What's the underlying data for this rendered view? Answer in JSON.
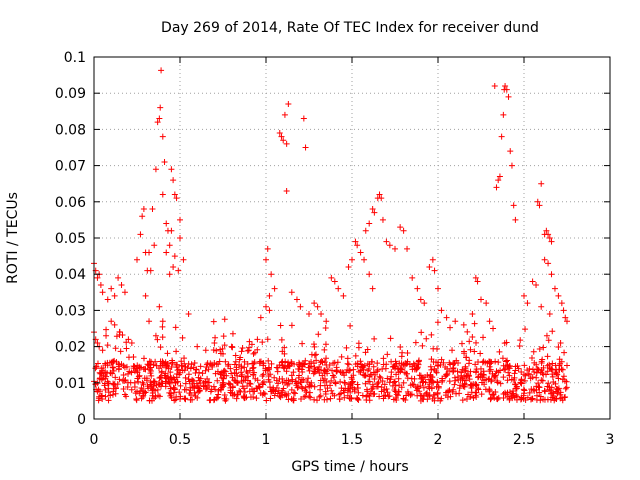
{
  "chart_data": {
    "type": "scatter",
    "title": "Day 269 of 2014, Rate Of TEC Index for receiver dund",
    "xlabel": "GPS time / hours",
    "ylabel": "ROTI / TECUs",
    "xlim": [
      0,
      3
    ],
    "ylim": [
      0,
      0.1
    ],
    "x_ticks": [
      0,
      0.5,
      1,
      1.5,
      2,
      2.5,
      3
    ],
    "x_tick_labels": [
      "0",
      "0.5",
      "1",
      "1.5",
      "2",
      "2.5",
      "3"
    ],
    "y_ticks": [
      0,
      0.01,
      0.02,
      0.03,
      0.04,
      0.05,
      0.06,
      0.07,
      0.08,
      0.09,
      0.1
    ],
    "y_tick_labels": [
      "0",
      "0.01",
      "0.02",
      "0.03",
      "0.04",
      "0.05",
      "0.06",
      "0.07",
      "0.08",
      "0.09",
      "0.1"
    ],
    "grid": true,
    "marker": "+",
    "marker_color": "#ff0000",
    "grid_color": "#a0a0a0",
    "frame_color": "#000000",
    "series": [
      {
        "name": "ROTI",
        "points": [
          [
            0.0,
            0.043
          ],
          [
            0.01,
            0.041
          ],
          [
            0.02,
            0.039
          ],
          [
            0.03,
            0.04
          ],
          [
            0.04,
            0.037
          ],
          [
            0.05,
            0.035
          ],
          [
            0.0,
            0.024
          ],
          [
            0.01,
            0.022
          ],
          [
            0.02,
            0.021
          ],
          [
            0.03,
            0.02
          ],
          [
            0.05,
            0.019
          ],
          [
            0.07,
            0.023
          ],
          [
            0.08,
            0.033
          ],
          [
            0.1,
            0.036
          ],
          [
            0.12,
            0.034
          ],
          [
            0.14,
            0.039
          ],
          [
            0.16,
            0.037
          ],
          [
            0.18,
            0.035
          ],
          [
            0.1,
            0.027
          ],
          [
            0.12,
            0.026
          ],
          [
            0.15,
            0.024
          ],
          [
            0.2,
            0.022
          ],
          [
            0.22,
            0.021
          ],
          [
            0.25,
            0.044
          ],
          [
            0.27,
            0.051
          ],
          [
            0.28,
            0.056
          ],
          [
            0.29,
            0.058
          ],
          [
            0.3,
            0.046
          ],
          [
            0.31,
            0.041
          ],
          [
            0.32,
            0.046
          ],
          [
            0.33,
            0.041
          ],
          [
            0.34,
            0.058
          ],
          [
            0.35,
            0.048
          ],
          [
            0.3,
            0.034
          ],
          [
            0.32,
            0.027
          ],
          [
            0.36,
            0.069
          ],
          [
            0.37,
            0.082
          ],
          [
            0.38,
            0.083
          ],
          [
            0.385,
            0.086
          ],
          [
            0.39,
            0.0963
          ],
          [
            0.4,
            0.078
          ],
          [
            0.41,
            0.071
          ],
          [
            0.4,
            0.062
          ],
          [
            0.42,
            0.054
          ],
          [
            0.43,
            0.052
          ],
          [
            0.44,
            0.048
          ],
          [
            0.45,
            0.069
          ],
          [
            0.46,
            0.066
          ],
          [
            0.47,
            0.062
          ],
          [
            0.48,
            0.061
          ],
          [
            0.45,
            0.052
          ],
          [
            0.47,
            0.045
          ],
          [
            0.49,
            0.041
          ],
          [
            0.5,
            0.055
          ],
          [
            0.5,
            0.05
          ],
          [
            0.52,
            0.044
          ],
          [
            0.46,
            0.042
          ],
          [
            0.42,
            0.046
          ],
          [
            0.44,
            0.04
          ],
          [
            0.55,
            0.029
          ],
          [
            0.38,
            0.031
          ],
          [
            0.4,
            0.027
          ],
          [
            0.36,
            0.023
          ],
          [
            0.6,
            0.02
          ],
          [
            0.65,
            0.019
          ],
          [
            0.7,
            0.021
          ],
          [
            0.75,
            0.018
          ],
          [
            0.8,
            0.02
          ],
          [
            0.85,
            0.017
          ],
          [
            0.9,
            0.019
          ],
          [
            0.95,
            0.022
          ],
          [
            0.97,
            0.028
          ],
          [
            1.0,
            0.031
          ],
          [
            1.02,
            0.03
          ],
          [
            1.0,
            0.044
          ],
          [
            1.01,
            0.047
          ],
          [
            1.03,
            0.04
          ],
          [
            1.05,
            0.036
          ],
          [
            1.02,
            0.034
          ],
          [
            1.08,
            0.079
          ],
          [
            1.09,
            0.078
          ],
          [
            1.1,
            0.077
          ],
          [
            1.11,
            0.084
          ],
          [
            1.12,
            0.076
          ],
          [
            1.13,
            0.087
          ],
          [
            1.12,
            0.063
          ],
          [
            1.22,
            0.083
          ],
          [
            1.23,
            0.075
          ],
          [
            1.15,
            0.035
          ],
          [
            1.18,
            0.033
          ],
          [
            1.2,
            0.031
          ],
          [
            1.25,
            0.029
          ],
          [
            1.28,
            0.032
          ],
          [
            1.3,
            0.031
          ],
          [
            1.32,
            0.029
          ],
          [
            1.35,
            0.027
          ],
          [
            1.38,
            0.039
          ],
          [
            1.4,
            0.038
          ],
          [
            1.42,
            0.036
          ],
          [
            1.45,
            0.034
          ],
          [
            1.48,
            0.042
          ],
          [
            1.5,
            0.044
          ],
          [
            1.52,
            0.049
          ],
          [
            1.53,
            0.048
          ],
          [
            1.55,
            0.046
          ],
          [
            1.57,
            0.044
          ],
          [
            1.58,
            0.052
          ],
          [
            1.6,
            0.054
          ],
          [
            1.62,
            0.058
          ],
          [
            1.63,
            0.057
          ],
          [
            1.65,
            0.061
          ],
          [
            1.66,
            0.062
          ],
          [
            1.67,
            0.061
          ],
          [
            1.68,
            0.055
          ],
          [
            1.7,
            0.049
          ],
          [
            1.72,
            0.048
          ],
          [
            1.6,
            0.04
          ],
          [
            1.62,
            0.036
          ],
          [
            1.75,
            0.047
          ],
          [
            1.78,
            0.053
          ],
          [
            1.8,
            0.052
          ],
          [
            1.82,
            0.047
          ],
          [
            1.85,
            0.039
          ],
          [
            1.88,
            0.036
          ],
          [
            1.9,
            0.033
          ],
          [
            1.92,
            0.032
          ],
          [
            1.95,
            0.042
          ],
          [
            1.97,
            0.044
          ],
          [
            1.98,
            0.041
          ],
          [
            2.0,
            0.036
          ],
          [
            2.02,
            0.03
          ],
          [
            2.05,
            0.028
          ],
          [
            2.1,
            0.027
          ],
          [
            2.15,
            0.026
          ],
          [
            2.2,
            0.029
          ],
          [
            2.22,
            0.039
          ],
          [
            2.23,
            0.038
          ],
          [
            2.25,
            0.033
          ],
          [
            2.28,
            0.032
          ],
          [
            2.3,
            0.027
          ],
          [
            2.32,
            0.025
          ],
          [
            2.33,
            0.092
          ],
          [
            2.34,
            0.064
          ],
          [
            2.35,
            0.066
          ],
          [
            2.36,
            0.067
          ],
          [
            2.37,
            0.078
          ],
          [
            2.38,
            0.084
          ],
          [
            2.385,
            0.091
          ],
          [
            2.39,
            0.092
          ],
          [
            2.4,
            0.091
          ],
          [
            2.41,
            0.089
          ],
          [
            2.42,
            0.074
          ],
          [
            2.43,
            0.07
          ],
          [
            2.44,
            0.059
          ],
          [
            2.45,
            0.055
          ],
          [
            2.5,
            0.034
          ],
          [
            2.52,
            0.032
          ],
          [
            2.55,
            0.038
          ],
          [
            2.57,
            0.037
          ],
          [
            2.58,
            0.06
          ],
          [
            2.59,
            0.059
          ],
          [
            2.6,
            0.065
          ],
          [
            2.62,
            0.051
          ],
          [
            2.63,
            0.052
          ],
          [
            2.64,
            0.051
          ],
          [
            2.65,
            0.05
          ],
          [
            2.66,
            0.049
          ],
          [
            2.62,
            0.044
          ],
          [
            2.64,
            0.043
          ],
          [
            2.66,
            0.04
          ],
          [
            2.68,
            0.036
          ],
          [
            2.7,
            0.034
          ],
          [
            2.72,
            0.032
          ],
          [
            2.73,
            0.03
          ],
          [
            2.74,
            0.028
          ],
          [
            2.75,
            0.027
          ],
          [
            2.6,
            0.031
          ],
          [
            2.65,
            0.029
          ]
        ]
      }
    ],
    "dense_band_note_omitted": false
  }
}
